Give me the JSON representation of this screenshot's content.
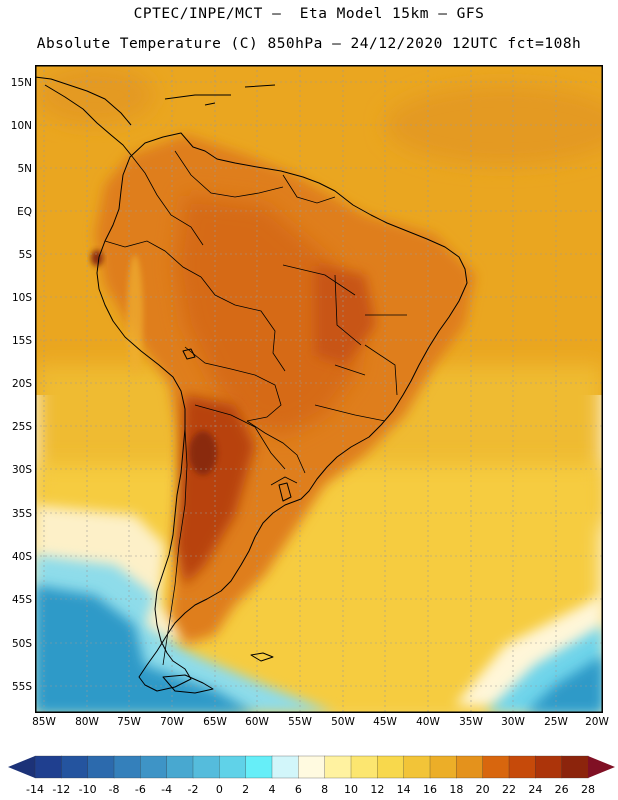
{
  "title": {
    "line1": "CPTEC/INPE/MCT –  Eta Model 15km – GFS",
    "line2": "Absolute Temperature (C) 850hPa – 24/12/2020 12UTC fct=108h"
  },
  "map": {
    "lat_labels": [
      "15N",
      "10N",
      "5N",
      "EQ",
      "5S",
      "10S",
      "15S",
      "20S",
      "25S",
      "30S",
      "35S",
      "40S",
      "45S",
      "50S",
      "55S"
    ],
    "lon_labels": [
      "85W",
      "80W",
      "75W",
      "70W",
      "65W",
      "60W",
      "55W",
      "50W",
      "45W",
      "40W",
      "35W",
      "30W",
      "25W",
      "20W"
    ],
    "temperature_field_peak_c": 28,
    "colors": {
      "ocean_tropical": "#eaa620",
      "ocean_midlat": "#f7cf40",
      "continent_warm": "#db7a18",
      "hotspot": "#8a2a10",
      "cold_south": "#2f9ac8"
    }
  },
  "colorbar": {
    "labels": [
      "-14",
      "-12",
      "-10",
      "-8",
      "-6",
      "-4",
      "-2",
      "0",
      "2",
      "4",
      "6",
      "8",
      "10",
      "12",
      "14",
      "16",
      "18",
      "20",
      "22",
      "24",
      "26",
      "28"
    ],
    "colors": [
      "#1f3f8f",
      "#24549f",
      "#2c6aad",
      "#3480bb",
      "#3e94c6",
      "#48a8d0",
      "#55bcdc",
      "#60d2e8",
      "#66eef8",
      "#d2f6fa",
      "#fffae0",
      "#fff2a0",
      "#fce670",
      "#f8d84c",
      "#f2c438",
      "#ecae28",
      "#e4921c",
      "#d8660e",
      "#c64a0a",
      "#ac340a",
      "#8c240c"
    ],
    "left_arrow_color": "#1c3278",
    "right_arrow_color": "#801024"
  }
}
